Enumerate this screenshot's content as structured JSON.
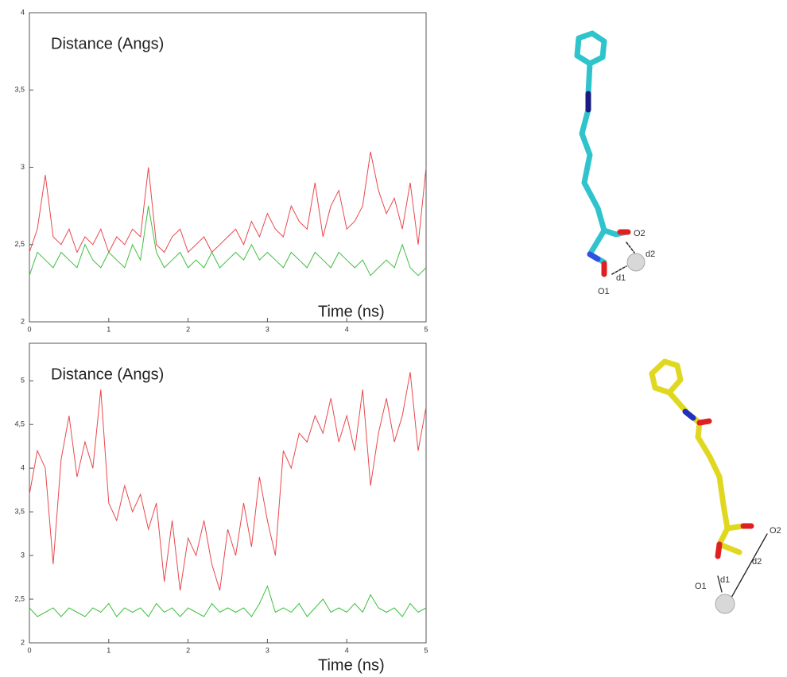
{
  "chart_data": [
    {
      "type": "line",
      "ylabel": "Distance (Angs)",
      "xlabel": "Time (ns)",
      "xlim": [
        0,
        5
      ],
      "xticks": [
        0,
        1,
        2,
        3,
        4,
        5
      ],
      "ylim": [
        2,
        4
      ],
      "yticks": [
        2,
        {
          "value": 2.5,
          "label": "2,5"
        },
        3,
        {
          "value": 3.5,
          "label": "3,5"
        },
        4
      ],
      "x": [
        0,
        0.1,
        0.2,
        0.3,
        0.4,
        0.5,
        0.6,
        0.7,
        0.8,
        0.9,
        1,
        1.1,
        1.2,
        1.3,
        1.4,
        1.5,
        1.6,
        1.7,
        1.8,
        1.9,
        2,
        2.1,
        2.2,
        2.3,
        2.4,
        2.5,
        2.6,
        2.7,
        2.8,
        2.9,
        3,
        3.1,
        3.2,
        3.3,
        3.4,
        3.5,
        3.6,
        3.7,
        3.8,
        3.9,
        4,
        4.1,
        4.2,
        4.3,
        4.4,
        4.5,
        4.6,
        4.7,
        4.8,
        4.9,
        5
      ],
      "series": [
        {
          "color": "#e8484d",
          "values": [
            2.45,
            2.6,
            2.95,
            2.55,
            2.5,
            2.6,
            2.45,
            2.55,
            2.5,
            2.6,
            2.45,
            2.55,
            2.5,
            2.6,
            2.55,
            3.0,
            2.5,
            2.45,
            2.55,
            2.6,
            2.45,
            2.5,
            2.55,
            2.45,
            2.5,
            2.55,
            2.6,
            2.5,
            2.65,
            2.55,
            2.7,
            2.6,
            2.55,
            2.75,
            2.65,
            2.6,
            2.9,
            2.55,
            2.75,
            2.85,
            2.6,
            2.65,
            2.75,
            3.1,
            2.85,
            2.7,
            2.8,
            2.6,
            2.9,
            2.5,
            3.0
          ]
        },
        {
          "color": "#3fbf3f",
          "values": [
            2.3,
            2.45,
            2.4,
            2.35,
            2.45,
            2.4,
            2.35,
            2.5,
            2.4,
            2.35,
            2.45,
            2.4,
            2.35,
            2.5,
            2.4,
            2.75,
            2.45,
            2.35,
            2.4,
            2.45,
            2.35,
            2.4,
            2.35,
            2.45,
            2.35,
            2.4,
            2.45,
            2.4,
            2.5,
            2.4,
            2.45,
            2.4,
            2.35,
            2.45,
            2.4,
            2.35,
            2.45,
            2.4,
            2.35,
            2.45,
            2.4,
            2.35,
            2.4,
            2.3,
            2.35,
            2.4,
            2.35,
            2.5,
            2.35,
            2.3,
            2.35
          ]
        }
      ]
    },
    {
      "type": "line",
      "ylabel": "Distance (Angs)",
      "xlabel": "Time (ns)",
      "xlim": [
        0,
        5
      ],
      "xticks": [
        0,
        1,
        2,
        3,
        4,
        5
      ],
      "ylim": [
        2,
        5.43
      ],
      "yticks": [
        2,
        {
          "value": 2.5,
          "label": "2,5"
        },
        3,
        {
          "value": 3.5,
          "label": "3,5"
        },
        4,
        {
          "value": 4.5,
          "label": "4,5"
        },
        5
      ],
      "x": [
        0,
        0.1,
        0.2,
        0.3,
        0.4,
        0.5,
        0.6,
        0.7,
        0.8,
        0.9,
        1,
        1.1,
        1.2,
        1.3,
        1.4,
        1.5,
        1.6,
        1.7,
        1.8,
        1.9,
        2,
        2.1,
        2.2,
        2.3,
        2.4,
        2.5,
        2.6,
        2.7,
        2.8,
        2.9,
        3,
        3.1,
        3.2,
        3.3,
        3.4,
        3.5,
        3.6,
        3.7,
        3.8,
        3.9,
        4,
        4.1,
        4.2,
        4.3,
        4.4,
        4.5,
        4.6,
        4.7,
        4.8,
        4.9,
        5
      ],
      "series": [
        {
          "color": "#e8484d",
          "values": [
            3.7,
            4.2,
            4.0,
            2.9,
            4.1,
            4.6,
            3.9,
            4.3,
            4.0,
            4.9,
            3.6,
            3.4,
            3.8,
            3.5,
            3.7,
            3.3,
            3.6,
            2.7,
            3.4,
            2.6,
            3.2,
            3.0,
            3.4,
            2.9,
            2.6,
            3.3,
            3.0,
            3.6,
            3.1,
            3.9,
            3.4,
            3.0,
            4.2,
            4.0,
            4.4,
            4.3,
            4.6,
            4.4,
            4.8,
            4.3,
            4.6,
            4.2,
            4.9,
            3.8,
            4.4,
            4.8,
            4.3,
            4.6,
            5.1,
            4.2,
            4.7
          ]
        },
        {
          "color": "#3fbf3f",
          "values": [
            2.4,
            2.3,
            2.35,
            2.4,
            2.3,
            2.4,
            2.35,
            2.3,
            2.4,
            2.35,
            2.45,
            2.3,
            2.4,
            2.35,
            2.4,
            2.3,
            2.45,
            2.35,
            2.4,
            2.3,
            2.4,
            2.35,
            2.3,
            2.45,
            2.35,
            2.4,
            2.35,
            2.4,
            2.3,
            2.45,
            2.65,
            2.35,
            2.4,
            2.35,
            2.45,
            2.3,
            2.4,
            2.5,
            2.35,
            2.4,
            2.35,
            2.45,
            2.35,
            2.55,
            2.4,
            2.35,
            2.4,
            2.3,
            2.45,
            2.35,
            2.4
          ]
        }
      ]
    }
  ],
  "structures": [
    {
      "labels": [
        "O2",
        "d2",
        "d1",
        "O1"
      ]
    },
    {
      "labels": [
        "O2",
        "d2",
        "d1",
        "O1"
      ]
    }
  ]
}
